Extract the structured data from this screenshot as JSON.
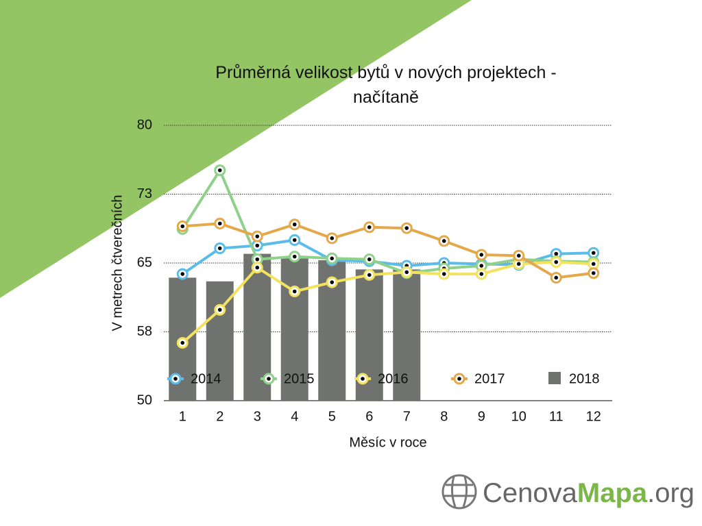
{
  "chart_data": {
    "type": "combo",
    "title": "Průměrná velikost bytů v nových projektech - načítaně",
    "x_label": "Měsíc v roce",
    "y_label": "V metrech čtverečních",
    "categories": [
      "1",
      "2",
      "3",
      "4",
      "5",
      "6",
      "7",
      "8",
      "9",
      "10",
      "11",
      "12"
    ],
    "ylim": [
      50,
      80
    ],
    "yticks": [
      50,
      {
        "value": 57.5,
        "label": "58"
      },
      65,
      {
        "value": 72.5,
        "label": "73"
      },
      80
    ],
    "grid": true,
    "series": [
      {
        "name": "2014",
        "type": "line",
        "color": "#5bbcea",
        "values": [
          63.8,
          66.6,
          66.9,
          67.5,
          65.3,
          65.2,
          64.7,
          65.0,
          64.9,
          64.8,
          66.0,
          66.1
        ]
      },
      {
        "name": "2015",
        "type": "line",
        "color": "#8fd08a",
        "values": [
          68.7,
          75.1,
          65.4,
          65.7,
          65.5,
          65.4,
          63.9,
          64.4,
          64.7,
          65.4,
          65.2,
          65.1
        ]
      },
      {
        "name": "2016",
        "type": "line",
        "color": "#f2e25e",
        "values": [
          56.3,
          59.9,
          64.5,
          61.9,
          62.9,
          63.7,
          64.0,
          63.8,
          63.8,
          64.9,
          65.1,
          64.9
        ]
      },
      {
        "name": "2017",
        "type": "line",
        "color": "#e4a84b",
        "values": [
          69.0,
          69.3,
          67.9,
          69.2,
          67.7,
          68.9,
          68.8,
          67.4,
          65.9,
          65.8,
          63.4,
          63.9
        ]
      },
      {
        "name": "2018",
        "type": "bar",
        "color": "#6f726f",
        "values": [
          63.4,
          63.0,
          66.0,
          65.5,
          65.3,
          64.3,
          64.3,
          null,
          null,
          null,
          null,
          null
        ]
      }
    ]
  },
  "logo": {
    "part1": "Cenova",
    "part2": "Mapa",
    "part3": ".org"
  }
}
